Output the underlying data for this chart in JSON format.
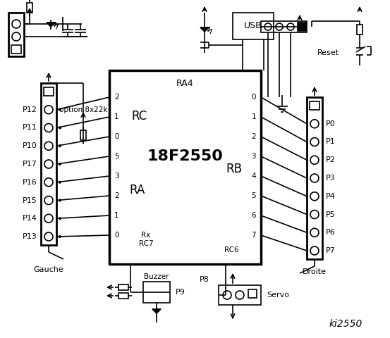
{
  "bg_color": "#ffffff",
  "lc": "#000000",
  "title": "ki2550",
  "chip_label": "18F2550",
  "chip_ra4": "RA4",
  "rc_text": "RC",
  "ra_text": "RA",
  "rb_text": "RB",
  "rx_rc7": "Rx\nRC7",
  "rc6_text": "RC6",
  "left_labels": [
    "P12",
    "P11",
    "P10",
    "P17",
    "P16",
    "P15",
    "P14",
    "P13"
  ],
  "right_labels": [
    "P0",
    "P1",
    "P2",
    "P3",
    "P4",
    "P5",
    "P6",
    "P7"
  ],
  "rc_pins": [
    "2",
    "1",
    "0"
  ],
  "ra_pins": [
    "5",
    "3",
    "2",
    "1",
    "0"
  ],
  "rb_pins": [
    "0",
    "1",
    "2",
    "3",
    "4",
    "5",
    "6",
    "7"
  ],
  "option_text": "option 8x22k",
  "gauche_text": "Gauche",
  "droite_text": "Droite",
  "usb_text": "USB",
  "buzzer_text": "Buzzer",
  "p9_text": "P9",
  "p8_text": "P8",
  "servo_text": "Servo",
  "reset_text": "Reset"
}
